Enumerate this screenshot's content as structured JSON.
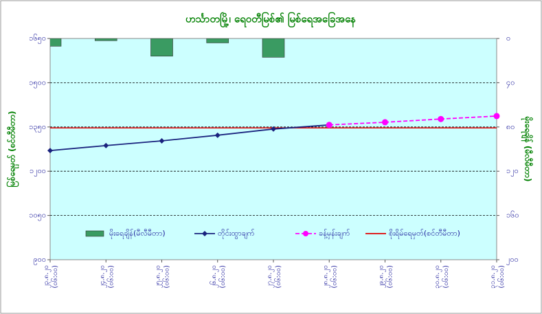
{
  "chart_data": {
    "type": "combo",
    "title": "ဟင်္သာတမြို့၊ ရေဝတီမြစ်၏ မြစ်ရေအခြေအနေ",
    "y_label": "မြစ်ရေမှတ် (စင်တီမီတာ)",
    "y2_label": "မိုးရေချိန် (မီလီမီတာ)",
    "categories": [
      [
        "၂၃.၈.၂၀",
        "(၀၆:၀၀)"
      ],
      [
        "၂၄.၈.၂၀",
        "(၀၆:၀၀)"
      ],
      [
        "၂၅.၈.၂၀",
        "(၀၆:၀၀)"
      ],
      [
        "၂၆.၈.၂၀",
        "(၀၆:၀၀)"
      ],
      [
        "၂၇.၈.၂၀",
        "(၀၆:၀၀)"
      ],
      [
        "၂၈.၈.၂၀",
        "(၀၆:၀၀)"
      ],
      [
        "၂၉.၈.၂၀",
        "(၀၆:၀၀)"
      ],
      [
        "၃၀.၈.၂၀",
        "(၀၆:၀၀)"
      ],
      [
        "၃၁.၈.၂၀",
        "(၀၆:၀၀)"
      ]
    ],
    "series": [
      {
        "name": "မိုးရေချိန်(မီလီမီတာ)",
        "kind": "bar",
        "axis": "y2",
        "color": "#3a9b62",
        "values": [
          7,
          2,
          16,
          4,
          17,
          null,
          null,
          null,
          null
        ]
      },
      {
        "name": "တိုင်းထွာချက်",
        "kind": "line",
        "color": "#1a237e",
        "marker": "diamond",
        "values": [
          1270,
          1287,
          1303,
          1322,
          1343,
          1357,
          null,
          null,
          null
        ]
      },
      {
        "name": "ခန့်မှန်းချက်",
        "kind": "line",
        "color": "#ff00ff",
        "marker": "circle",
        "dashed": true,
        "values": [
          null,
          null,
          null,
          null,
          null,
          1357,
          1366,
          1377,
          1387
        ]
      }
    ],
    "reference_lines": [
      {
        "name": "စိုးရိမ်ရေမှတ်(စင်တီမီတာ)",
        "value": 1347,
        "color": "#e00000"
      }
    ],
    "ylim": [
      900,
      1650
    ],
    "yticks": [
      {
        "value": 900,
        "label": "၉၀၀"
      },
      {
        "value": 1050,
        "label": "၁၀၅၀"
      },
      {
        "value": 1200,
        "label": "၁၂၀၀"
      },
      {
        "value": 1350,
        "label": "၁၃၅၀"
      },
      {
        "value": 1500,
        "label": "၁၅၀၀"
      },
      {
        "value": 1650,
        "label": "၁၆၅၀"
      }
    ],
    "y2lim": [
      0,
      200
    ],
    "y2_inverted": true,
    "y2ticks": [
      {
        "value": 0,
        "label": "၀"
      },
      {
        "value": 40,
        "label": "၄၀"
      },
      {
        "value": 80,
        "label": "၈၀"
      },
      {
        "value": 120,
        "label": "၁၂၀"
      },
      {
        "value": 160,
        "label": "၁၆၀"
      },
      {
        "value": 200,
        "label": "၂၀၀"
      }
    ],
    "grid": true,
    "legend": "bottom"
  }
}
